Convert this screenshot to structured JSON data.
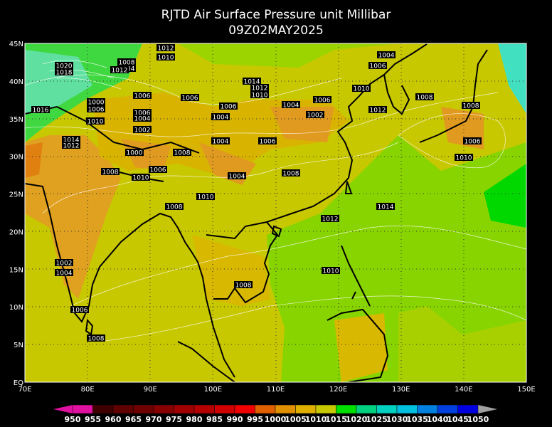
{
  "title": "RJTD Air Surface Pressure unit Millibar",
  "subtitle": "09Z02MAY2025",
  "x_ticks": [
    "70E",
    "80E",
    "90E",
    "100E",
    "110E",
    "120E",
    "130E",
    "140E",
    "150E"
  ],
  "y_ticks": [
    "EQ",
    "5N",
    "10N",
    "15N",
    "20N",
    "25N",
    "30N",
    "35N",
    "40N",
    "45N"
  ],
  "contour_labels": [
    1012,
    1010,
    1004,
    1006,
    1008,
    1004,
    1012,
    1020,
    1018,
    1010,
    1014,
    1012,
    1010,
    1006,
    1006,
    1008,
    1000,
    1006,
    1004,
    1006,
    1006,
    1012,
    1008,
    1016,
    1006,
    1004,
    1002,
    1004,
    1010,
    1002,
    1014,
    1012,
    1004,
    1006,
    1006,
    1000,
    1008,
    1010,
    1006,
    1008,
    1010,
    1004,
    1008,
    1010,
    1008,
    1014,
    1012,
    1002,
    1004,
    1010,
    1008,
    1006,
    1008
  ],
  "colorbar": {
    "labels": [
      950,
      955,
      960,
      965,
      970,
      975,
      980,
      985,
      990,
      995,
      1000,
      1005,
      1010,
      1015,
      1020,
      1025,
      1030,
      1035,
      1040,
      1045,
      1050
    ],
    "colors": [
      "#e010a0",
      "#400000",
      "#600000",
      "#700000",
      "#880000",
      "#a00000",
      "#b40000",
      "#d00000",
      "#f00000",
      "#e06000",
      "#e09000",
      "#e0b000",
      "#c8c800",
      "#00e000",
      "#00d080",
      "#00d0c0",
      "#00c0e0",
      "#0080e0",
      "#0040e0",
      "#0000e0"
    ],
    "under_color": "#e010a0",
    "over_color": "#a0a0a0"
  }
}
